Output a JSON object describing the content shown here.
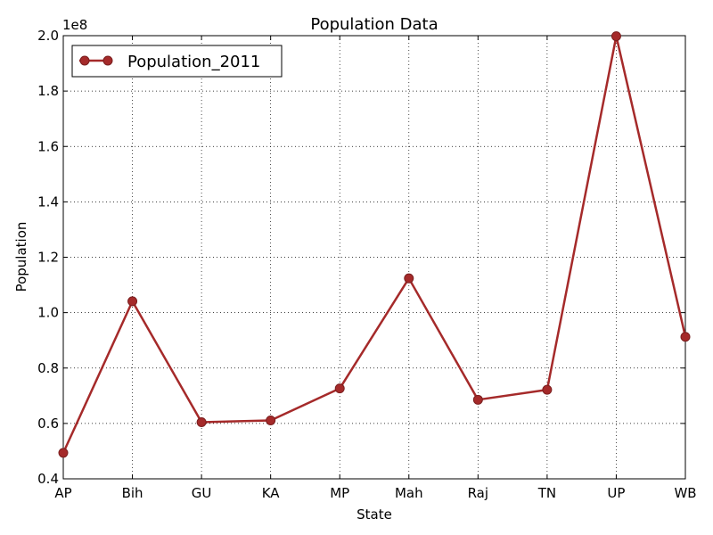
{
  "chart_data": {
    "type": "line",
    "title": "Population Data",
    "xlabel": "State",
    "ylabel": "Population",
    "categories": [
      "AP",
      "Bih",
      "GU",
      "KA",
      "MP",
      "Mah",
      "Raj",
      "TN",
      "UP",
      "WB"
    ],
    "series": [
      {
        "name": "Population_2011",
        "color": "#a52a2a",
        "marker": "circle",
        "values": [
          49386799,
          104099452,
          60439692,
          61095297,
          72626809,
          112374333,
          68548437,
          72147030,
          199812341,
          91276115
        ]
      }
    ],
    "ylim": [
      40000000,
      200000000
    ],
    "yticks": [
      40000000,
      60000000,
      80000000,
      100000000,
      120000000,
      140000000,
      160000000,
      180000000,
      200000000
    ],
    "ytick_labels": [
      "0.4",
      "0.6",
      "0.8",
      "1.0",
      "1.2",
      "1.4",
      "1.6",
      "1.8",
      "2.0"
    ],
    "y_offset_label": "1e8",
    "grid": true,
    "legend": "top-left"
  }
}
